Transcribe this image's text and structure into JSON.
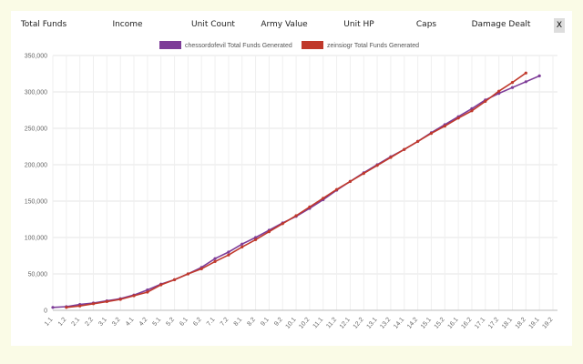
{
  "tabs": [
    "Total Funds",
    "Income",
    "Unit Count",
    "Army Value",
    "Unit HP",
    "Caps",
    "Damage Dealt"
  ],
  "close_button": "X",
  "chart_data": {
    "type": "line",
    "categories": [
      "1.1",
      "1.2",
      "2.1",
      "2.2",
      "3.1",
      "3.2",
      "4.1",
      "4.2",
      "5.1",
      "5.2",
      "6.1",
      "6.2",
      "7.1",
      "7.2",
      "8.1",
      "8.2",
      "9.1",
      "9.2",
      "10.1",
      "10.2",
      "11.1",
      "11.2",
      "12.1",
      "12.2",
      "13.1",
      "13.2",
      "14.1",
      "14.2",
      "15.1",
      "15.2",
      "16.1",
      "16.2",
      "17.1",
      "17.2",
      "18.1",
      "18.2",
      "19.1",
      "19.2"
    ],
    "series": [
      {
        "name": "chessordofevil Total Funds Generated",
        "color": "#7d3c98",
        "values": [
          4000,
          5000,
          8000,
          10000,
          13000,
          16000,
          21000,
          28000,
          36000,
          42000,
          50000,
          59000,
          71000,
          80000,
          91000,
          100000,
          110000,
          120000,
          129000,
          140000,
          152000,
          165000,
          177000,
          189000,
          200000,
          211000,
          221000,
          232000,
          244000,
          255000,
          266000,
          277000,
          289000,
          298000,
          306000,
          314000,
          322000,
          null
        ]
      },
      {
        "name": "zeinsiogr Total Funds Generated",
        "color": "#c0392b",
        "values": [
          null,
          4000,
          6000,
          9000,
          12000,
          15000,
          20000,
          25000,
          35000,
          42000,
          50000,
          57000,
          67000,
          76000,
          87000,
          97000,
          108000,
          119000,
          130000,
          142000,
          154000,
          166000,
          177000,
          188000,
          199000,
          210000,
          221000,
          232000,
          243000,
          253000,
          264000,
          274000,
          287000,
          301000,
          313000,
          326000,
          null,
          null
        ]
      }
    ],
    "ylim": [
      0,
      350000
    ],
    "yticks": [
      0,
      {
        "value": 50000,
        "label": "50,000"
      },
      {
        "value": 100000,
        "label": "100,000"
      },
      {
        "value": 150000,
        "label": "150,000"
      },
      {
        "value": 200000,
        "label": "200,000"
      },
      {
        "value": 250000,
        "label": "250,000"
      },
      {
        "value": 300000,
        "label": "300,000"
      },
      {
        "value": 350000,
        "label": "350,000"
      }
    ],
    "grid": true
  }
}
